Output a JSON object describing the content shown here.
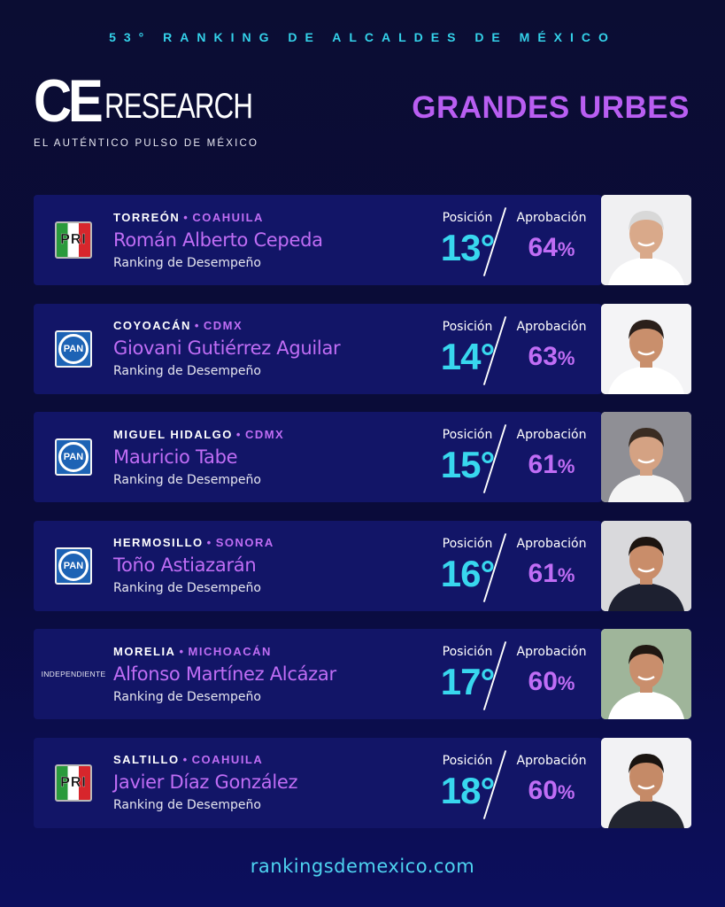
{
  "header": {
    "topline": "53° RANKING DE ALCALDES DE MÉXICO",
    "logo_ce": "CE",
    "logo_research": "RESEARCH",
    "logo_tagline": "EL AUTÉNTICO PULSO DE MÉXICO",
    "category_title": "GRANDES URBES"
  },
  "colors": {
    "background": "#0b0d33",
    "card": "#121567",
    "accent_cyan": "#38d7ee",
    "accent_purple": "#c06df5"
  },
  "labels": {
    "posicion": "Posición",
    "aprobacion": "Aprobación",
    "ranking": "Ranking de Desempeño",
    "pri": "PRI",
    "pan": "PAN",
    "independiente": "INDEPENDIENTE"
  },
  "mayors": [
    {
      "city": "TORREÓN",
      "state": "COAHUILA",
      "name": "Román Alberto Cepeda",
      "party": "PRI",
      "position": "13°",
      "approval": "64",
      "photo_bg": "#f0f0f2",
      "skin": "#d9a98a",
      "hair": "#d8d8d8",
      "shirt": "#ffffff"
    },
    {
      "city": "COYOACÁN",
      "state": "CDMX",
      "name": "Giovani Gutiérrez Aguilar",
      "party": "PAN",
      "position": "14°",
      "approval": "63",
      "photo_bg": "#f4f4f6",
      "skin": "#c98f6c",
      "hair": "#2a1f1a",
      "shirt": "#ffffff"
    },
    {
      "city": "MIGUEL HIDALGO",
      "state": "CDMX",
      "name": "Mauricio Tabe",
      "party": "PAN",
      "position": "15°",
      "approval": "61",
      "photo_bg": "#8f8f95",
      "skin": "#d4a283",
      "hair": "#3a2c22",
      "shirt": "#f4f4f4"
    },
    {
      "city": "HERMOSILLO",
      "state": "SONORA",
      "name": "Toño Astiazarán",
      "party": "PAN",
      "position": "16°",
      "approval": "61",
      "photo_bg": "#d9d9dc",
      "skin": "#c98d6a",
      "hair": "#1c1410",
      "shirt": "#1d2030"
    },
    {
      "city": "MORELIA",
      "state": "MICHOACÁN",
      "name": "Alfonso Martínez Alcázar",
      "party": "INDEPENDIENTE",
      "position": "17°",
      "approval": "60",
      "photo_bg": "#9fb59a",
      "skin": "#c98e6c",
      "hair": "#201712",
      "shirt": "#ffffff"
    },
    {
      "city": "SALTILLO",
      "state": "COAHUILA",
      "name": "Javier Díaz González",
      "party": "PRI",
      "position": "18°",
      "approval": "60",
      "photo_bg": "#f2f2f4",
      "skin": "#c58a67",
      "hair": "#1a1410",
      "shirt": "#22252f"
    }
  ],
  "footer": {
    "url": "rankingsdemexico.com"
  }
}
